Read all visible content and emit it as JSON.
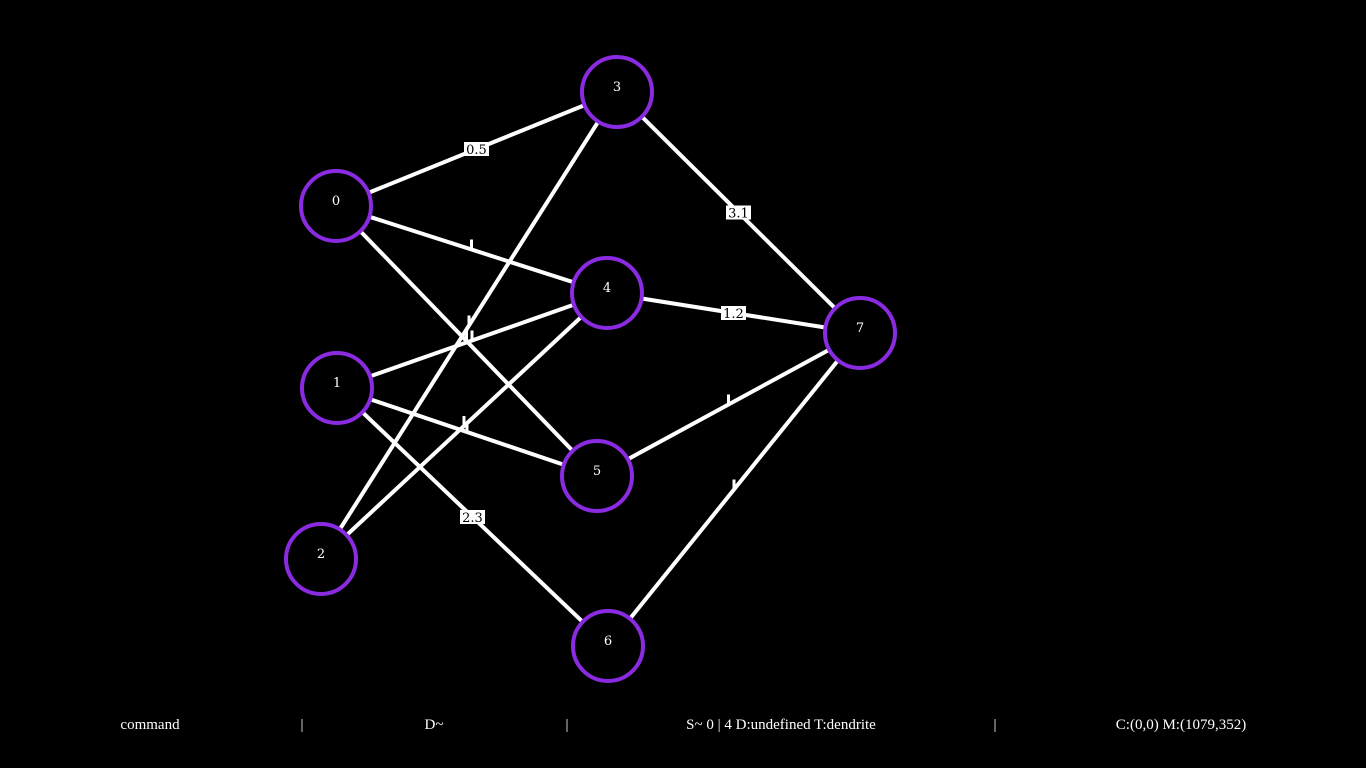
{
  "theme": {
    "background": "#000000",
    "edge_color": "#ffffff",
    "node_stroke": "#8a2be2",
    "node_fill": "#000000",
    "node_text": "#ffffff",
    "label_bg": "#ffffff",
    "label_text": "#000000"
  },
  "network": {
    "nodes": [
      {
        "id": "0",
        "label": "0"
      },
      {
        "id": "1",
        "label": "1"
      },
      {
        "id": "2",
        "label": "2"
      },
      {
        "id": "3",
        "label": "3"
      },
      {
        "id": "4",
        "label": "4"
      },
      {
        "id": "5",
        "label": "5"
      },
      {
        "id": "6",
        "label": "6"
      },
      {
        "id": "7",
        "label": "7"
      }
    ],
    "edges": [
      {
        "from": "0",
        "to": "3",
        "label": "0.5"
      },
      {
        "from": "0",
        "to": "4",
        "label": ""
      },
      {
        "from": "0",
        "to": "5",
        "label": ""
      },
      {
        "from": "1",
        "to": "4",
        "label": ""
      },
      {
        "from": "1",
        "to": "5",
        "label": ""
      },
      {
        "from": "1",
        "to": "6",
        "label": "2.3"
      },
      {
        "from": "2",
        "to": "3",
        "label": ""
      },
      {
        "from": "2",
        "to": "4",
        "label": ""
      },
      {
        "from": "3",
        "to": "7",
        "label": "3.1"
      },
      {
        "from": "4",
        "to": "7",
        "label": "1.2"
      },
      {
        "from": "5",
        "to": "7",
        "label": ""
      },
      {
        "from": "6",
        "to": "7",
        "label": ""
      }
    ]
  },
  "status_bar": {
    "mode": "command",
    "separator": "|",
    "draw_state": "D~",
    "selection": "S~ 0 | 4 D:undefined T:dendrite",
    "coords": "C:(0,0) M:(1079,352)"
  }
}
